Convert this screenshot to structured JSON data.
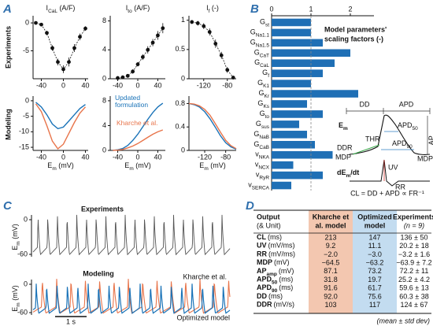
{
  "panel_labels": [
    "A",
    "B",
    "C",
    "D"
  ],
  "panel_a": {
    "row_labels": [
      "Experiments",
      "Modeling"
    ]
  },
  "chart_data": [
    {
      "type": "line",
      "y_label": "ICaL (A/F)",
      "markers": true,
      "x": [
        -50,
        -40,
        -30,
        -20,
        -10,
        0,
        10,
        20,
        30,
        40
      ],
      "series": [
        {
          "color": "#111111",
          "values": [
            0,
            -0.3,
            -1.8,
            -4.5,
            -7,
            -8.3,
            -7,
            -4.5,
            -2.5,
            -1
          ],
          "errors": [
            0.2,
            0.3,
            0.4,
            0.5,
            0.6,
            0.7,
            0.8,
            0.7,
            0.6,
            0.4
          ]
        }
      ],
      "xlim": [
        -55,
        45
      ],
      "ylim": [
        -10,
        1
      ],
      "xticks": [
        -40,
        0,
        40
      ],
      "yticks": [
        0,
        -5
      ]
    },
    {
      "type": "line",
      "y_label": "Ito (A/F)",
      "markers": true,
      "x": [
        -40,
        -30,
        -20,
        -10,
        0,
        10,
        20,
        30,
        40,
        50
      ],
      "series": [
        {
          "color": "#111111",
          "values": [
            0.1,
            0.2,
            0.4,
            1,
            2,
            3,
            4,
            5,
            6,
            7
          ],
          "errors": [
            0.1,
            0.1,
            0.2,
            0.3,
            0.3,
            0.4,
            0.5,
            0.5,
            0.6,
            0.7
          ]
        }
      ],
      "xlim": [
        -55,
        55
      ],
      "ylim": [
        0,
        8.5
      ],
      "xticks": [
        -40,
        0,
        40
      ],
      "yticks": [
        0,
        4,
        8
      ]
    },
    {
      "type": "line",
      "y_label": "If (-)",
      "markers": true,
      "x": [
        -140,
        -130,
        -120,
        -110,
        -100,
        -90,
        -80,
        -70
      ],
      "series": [
        {
          "color": "#111111",
          "values": [
            0.97,
            0.95,
            0.9,
            0.8,
            0.6,
            0.4,
            0.15,
            0.02
          ],
          "errors": [
            0.03,
            0.04,
            0.05,
            0.06,
            0.07,
            0.06,
            0.05,
            0.03
          ]
        }
      ],
      "xlim": [
        -145,
        -65
      ],
      "ylim": [
        0,
        1.05
      ],
      "xticks": [
        -120,
        -80
      ],
      "yticks": [
        0,
        0.5,
        1
      ]
    },
    {
      "type": "line",
      "x_label": "Em (mV)",
      "x": [
        -50,
        -40,
        -30,
        -20,
        -10,
        0,
        10,
        20,
        30,
        40
      ],
      "series": [
        {
          "color": "#1a73b8",
          "values": [
            -0.5,
            -2,
            -4.5,
            -7.5,
            -9,
            -8.5,
            -6.5,
            -4.5,
            -2.5,
            -1.2
          ]
        },
        {
          "color": "#e8744a",
          "values": [
            -1,
            -3.5,
            -8,
            -13,
            -15.5,
            -14,
            -10.5,
            -7,
            -4,
            -2
          ]
        }
      ],
      "xlim": [
        -55,
        45
      ],
      "ylim": [
        -16,
        1
      ],
      "xticks": [
        -40,
        0,
        40
      ],
      "yticks": [
        0,
        -5,
        -10,
        -15
      ]
    },
    {
      "type": "line",
      "x_label": "Em (mV)",
      "x": [
        -50,
        -40,
        -30,
        -20,
        -10,
        0,
        10,
        20,
        30,
        40,
        50
      ],
      "series": [
        {
          "name": "Updated formulation",
          "color": "#1a73b8",
          "values": [
            0,
            0.1,
            0.3,
            0.8,
            1.6,
            2.6,
            3.8,
            5,
            6.1,
            7,
            7.6
          ]
        },
        {
          "name": "Kharche et al.",
          "color": "#e8744a",
          "values": [
            0,
            0.05,
            0.15,
            0.4,
            0.7,
            1.1,
            1.6,
            2.1,
            2.6,
            3,
            3.3
          ]
        }
      ],
      "xlim": [
        -55,
        55
      ],
      "ylim": [
        0,
        8.5
      ],
      "xticks": [
        -40,
        0,
        40
      ],
      "yticks": [
        0,
        4,
        8
      ]
    },
    {
      "type": "line",
      "x_label": "Em (mV)",
      "x": [
        -150,
        -140,
        -130,
        -120,
        -110,
        -100,
        -90,
        -80,
        -70,
        -60
      ],
      "series": [
        {
          "color": "#1a73b8",
          "values": [
            0.8,
            0.78,
            0.74,
            0.66,
            0.54,
            0.4,
            0.25,
            0.13,
            0.06,
            0.02
          ]
        },
        {
          "color": "#e8744a",
          "values": [
            0.8,
            0.79,
            0.76,
            0.7,
            0.6,
            0.46,
            0.31,
            0.17,
            0.08,
            0.03
          ]
        }
      ],
      "xlim": [
        -150,
        -60
      ],
      "ylim": [
        0,
        0.9
      ],
      "xticks": [
        -120,
        -80
      ],
      "yticks": [
        0,
        0.4,
        0.8
      ]
    },
    {
      "type": "hbar",
      "title": [
        "Model parameters'",
        "scaling factors (-)"
      ],
      "color": "#1f6fb5",
      "categories": [
        "Gst",
        "GNa1.1",
        "GNa1.5",
        "GCaT",
        "GCaL",
        "Gf",
        "GK1",
        "GKr",
        "GKs",
        "Gto",
        "Gsus",
        "GNaB",
        "GCaB",
        "vNKA",
        "vNCX",
        "vRyR",
        "vSERCA"
      ],
      "values": [
        1.0,
        1.0,
        1.3,
        2.0,
        1.6,
        1.3,
        1.0,
        2.2,
        0.9,
        1.3,
        0.7,
        0.9,
        1.1,
        1.55,
        0.55,
        1.3,
        0.5
      ],
      "xlim": [
        0,
        2.6
      ],
      "xticks": [
        0,
        1,
        2
      ],
      "reference_line": 1
    }
  ],
  "schematic": {
    "dd": "DD",
    "apd": "APD",
    "em": "Em",
    "apd50": "APD50",
    "apd90": "APD90",
    "ap_amp": "APamp",
    "thr": "THR",
    "ddr": "DDR",
    "mdp": "MDP",
    "dvdt": "dEm/dt",
    "uv": "UV",
    "rr": "RR",
    "formula": "CL = DD + APD ∝ FR⁻¹"
  },
  "panel_c": {
    "titles": [
      "Experiments",
      "Modeling"
    ],
    "y_label": "Em (mV)",
    "yticks": [
      0,
      -60
    ],
    "scale_bar": "1 s",
    "trace_color": "#555555",
    "legend": [
      {
        "name": "Kharche et al.",
        "color": "#e8744a"
      },
      {
        "name": "Optimized model",
        "color": "#1a73b8"
      }
    ]
  },
  "table": {
    "header": [
      [
        "Output",
        "(& Unit)"
      ],
      [
        "Kharche et",
        "al. model"
      ],
      [
        "Optimized",
        "model"
      ],
      [
        "Experiments",
        "(n = 9)"
      ]
    ],
    "rows": [
      {
        "name": "CL",
        "unit": "(ms)",
        "cells": [
          "213",
          "147",
          "136 ± 50"
        ]
      },
      {
        "name": "UV",
        "unit": "(mV/ms)",
        "cells": [
          "9.2",
          "11.1",
          "20.2 ± 18"
        ]
      },
      {
        "name": "RR",
        "unit": "(mV/ms)",
        "cells": [
          "−2.0",
          "−3.0",
          "−3.2 ± 1.6"
        ]
      },
      {
        "name": "MDP",
        "unit": "(mV)",
        "cells": [
          "−64.5",
          "−63.2",
          "−63.9 ± 7.2"
        ]
      },
      {
        "name": "APamp",
        "unit": "(mV)",
        "cells": [
          "87.1",
          "73.2",
          "72.2 ± 11"
        ]
      },
      {
        "name": "APD50",
        "unit": "(ms)",
        "cells": [
          "31.8",
          "19.7",
          "25.2 ± 4.2"
        ]
      },
      {
        "name": "APD90",
        "unit": "(ms)",
        "cells": [
          "91.6",
          "61.7",
          "59.6 ± 13"
        ]
      },
      {
        "name": "DD",
        "unit": "(ms)",
        "cells": [
          "92.0",
          "75.6",
          "60.3 ± 38"
        ]
      },
      {
        "name": "DDR",
        "unit": "(mV/s)",
        "cells": [
          "103",
          "117",
          "124 ± 67"
        ]
      }
    ],
    "footnote": "(mean ± std dev)"
  }
}
